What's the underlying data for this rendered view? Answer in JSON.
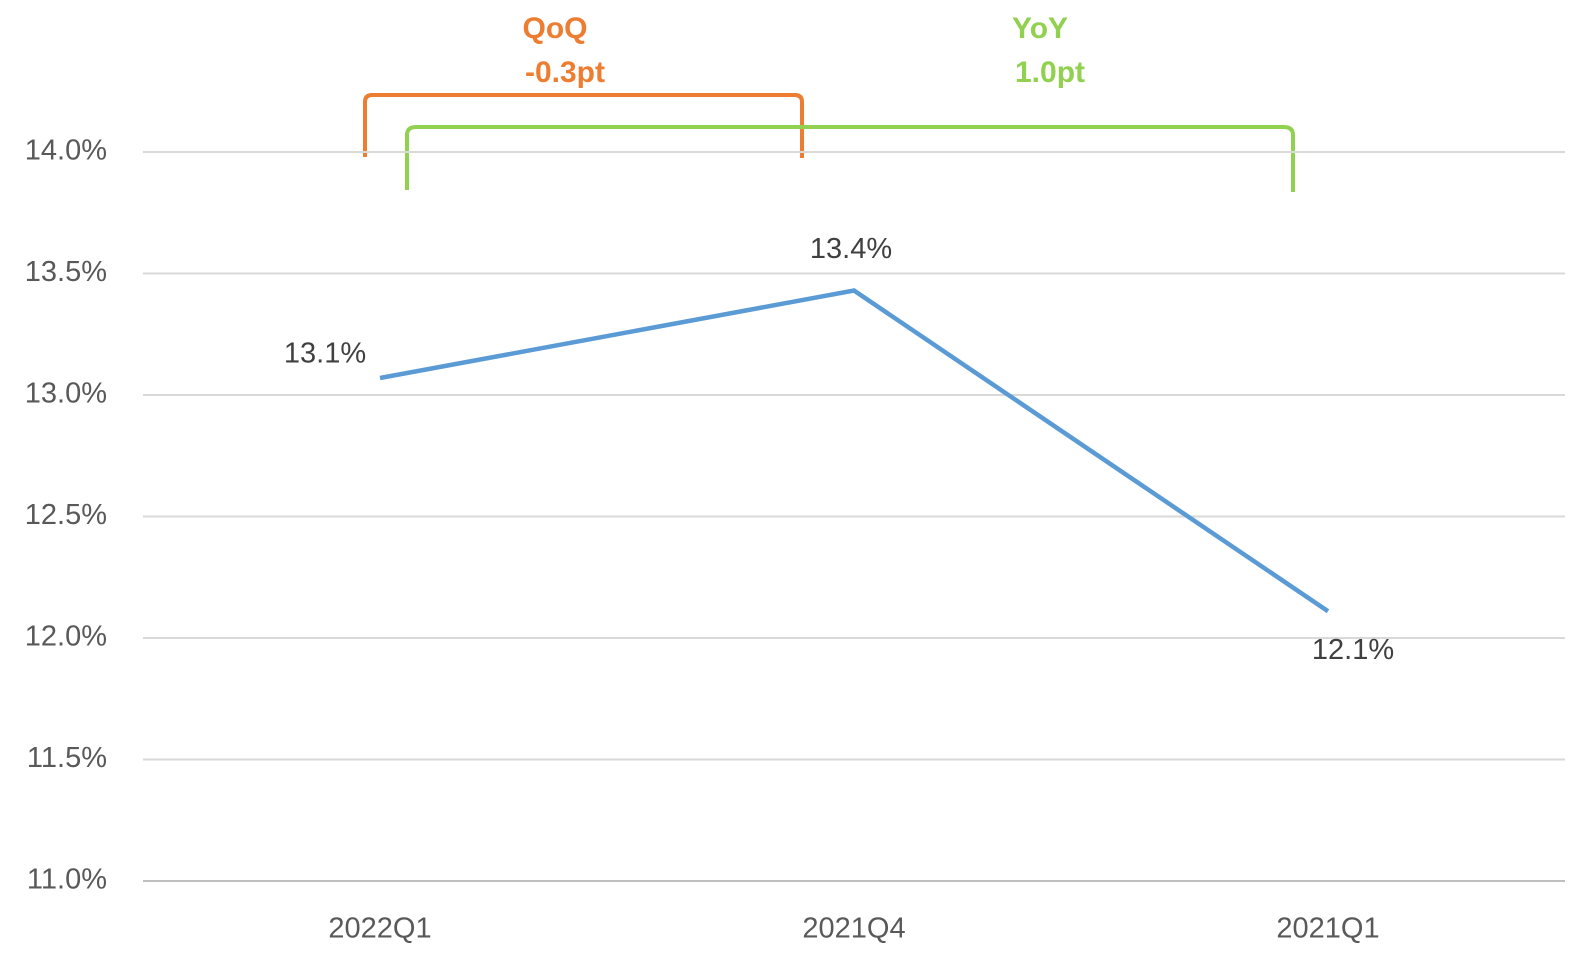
{
  "chart_data": {
    "type": "line",
    "categories": [
      "2022Q1",
      "2021Q4",
      "2021Q1"
    ],
    "series": [
      {
        "name": "Rate",
        "color": "#5b9bd5",
        "values": [
          13.07,
          13.43,
          12.11
        ]
      }
    ],
    "value_labels": [
      "13.1%",
      "13.4%",
      "12.1%"
    ],
    "ylim": [
      11,
      14
    ],
    "yticks": [
      {
        "value": 11,
        "label": "11.0%"
      },
      {
        "value": 11.5,
        "label": "11.5%"
      },
      {
        "value": 12,
        "label": "12.0%"
      },
      {
        "value": 12.5,
        "label": "12.5%"
      },
      {
        "value": 13,
        "label": "13.0%"
      },
      {
        "value": 13.5,
        "label": "13.5%"
      },
      {
        "value": 14,
        "label": "14.0%"
      }
    ],
    "grid": true,
    "annotations": [
      {
        "lines": [
          "QoQ",
          "-0.3pt"
        ],
        "color": "#ed7d31"
      },
      {
        "lines": [
          "YoY",
          "1.0pt"
        ],
        "color": "#92d050"
      }
    ]
  }
}
